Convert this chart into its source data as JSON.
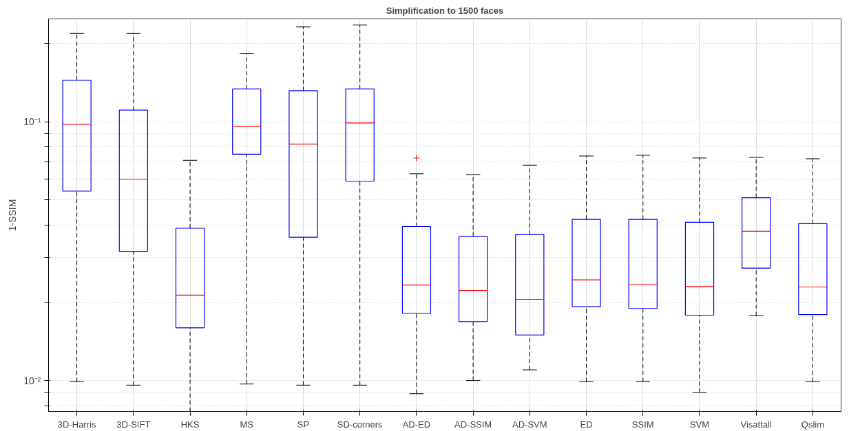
{
  "chart_data": {
    "type": "box",
    "title": "Simplification to 1500 faces",
    "ylabel": "1-SSIM",
    "log": "y",
    "grid": true,
    "color": "#0000ff",
    "categories": [
      "3D-Harris",
      "3D-SIFT",
      "HKS",
      "MS",
      "SP",
      "SD-corners",
      "AD-ED",
      "AD-SSIM",
      "AD-SVM",
      "ED",
      "SSIM",
      "SVM",
      "Visattall",
      "Qslim"
    ],
    "ylim": [
      0.0076,
      0.25
    ],
    "yticks": [
      {
        "value": 0.008,
        "label": null
      },
      {
        "value": 0.009,
        "label": null
      },
      {
        "value": 0.01,
        "label": "10⁻²"
      },
      {
        "value": 0.02,
        "label": null
      },
      {
        "value": 0.03,
        "label": null
      },
      {
        "value": 0.04,
        "label": null
      },
      {
        "value": 0.05,
        "label": null
      },
      {
        "value": 0.06,
        "label": null
      },
      {
        "value": 0.07,
        "label": null
      },
      {
        "value": 0.08,
        "label": null
      },
      {
        "value": 0.09,
        "label": null
      },
      {
        "value": 0.1,
        "label": "10⁻¹"
      },
      {
        "value": 0.2,
        "label": null
      }
    ],
    "boxes": [
      {
        "low": 0.0099,
        "q1": 0.054,
        "median": 0.098,
        "q3": 0.145,
        "high": 0.22
      },
      {
        "low": 0.0096,
        "q1": 0.0316,
        "median": 0.06,
        "q3": 0.111,
        "high": 0.22
      },
      {
        "low": 0.0076,
        "q1": 0.016,
        "median": 0.0214,
        "q3": 0.0388,
        "high": 0.071
      },
      {
        "low": 0.0097,
        "q1": 0.075,
        "median": 0.096,
        "q3": 0.134,
        "high": 0.184
      },
      {
        "low": 0.0096,
        "q1": 0.0358,
        "median": 0.082,
        "q3": 0.132,
        "high": 0.233
      },
      {
        "low": 0.0096,
        "q1": 0.059,
        "median": 0.099,
        "q3": 0.134,
        "high": 0.237
      },
      {
        "low": 0.0089,
        "q1": 0.0182,
        "median": 0.0234,
        "q3": 0.0394,
        "high": 0.063,
        "outliers": [
          0.0725
        ]
      },
      {
        "low": 0.01,
        "q1": 0.0169,
        "median": 0.0223,
        "q3": 0.0361,
        "high": 0.0626
      },
      {
        "low": 0.011,
        "q1": 0.015,
        "median": 0.0206,
        "q3": 0.0367,
        "high": 0.068
      },
      {
        "low": 0.0099,
        "q1": 0.0193,
        "median": 0.0245,
        "q3": 0.042,
        "high": 0.0738
      },
      {
        "low": 0.0099,
        "q1": 0.019,
        "median": 0.0235,
        "q3": 0.042,
        "high": 0.0743
      },
      {
        "low": 0.009,
        "q1": 0.0179,
        "median": 0.0231,
        "q3": 0.0409,
        "high": 0.0725
      },
      {
        "low": 0.0178,
        "q1": 0.0272,
        "median": 0.0378,
        "q3": 0.0509,
        "high": 0.0729
      },
      {
        "low": 0.0099,
        "q1": 0.018,
        "median": 0.023,
        "q3": 0.0404,
        "high": 0.072
      }
    ]
  }
}
